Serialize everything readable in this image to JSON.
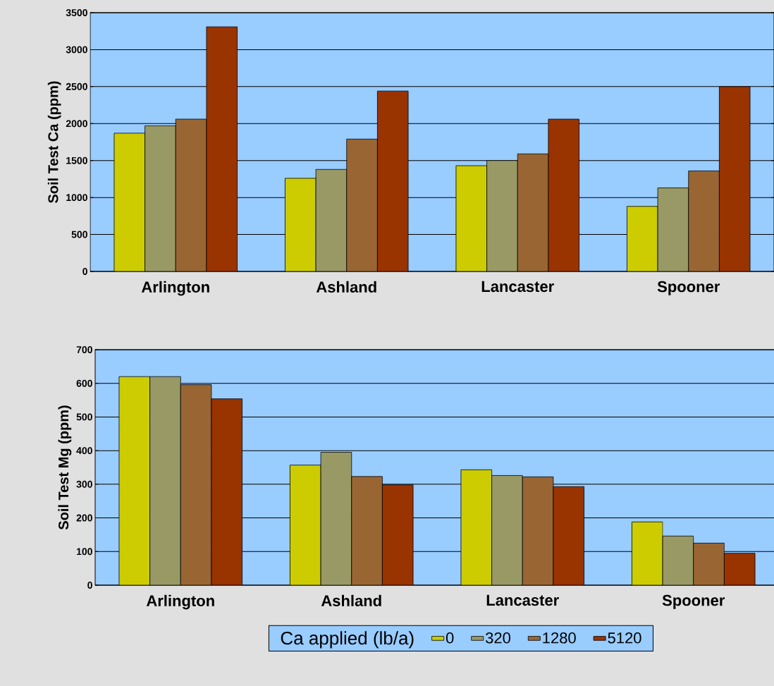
{
  "chart_data": [
    {
      "type": "bar",
      "ylabel": "Soil Test Ca (ppm)",
      "categories": [
        "Arlington",
        "Ashland",
        "Lancaster",
        "Spooner"
      ],
      "ylim": [
        0,
        3500
      ],
      "yticks": [
        0,
        500,
        1000,
        1500,
        2000,
        2500,
        3000,
        3500
      ],
      "grid": "y",
      "series": [
        {
          "color": "#cccc00",
          "values": [
            1870,
            1260,
            1430,
            880
          ]
        },
        {
          "color": "#999966",
          "values": [
            1970,
            1380,
            1500,
            1130
          ]
        },
        {
          "color": "#996633",
          "values": [
            2060,
            1790,
            1590,
            1360
          ]
        },
        {
          "color": "#993300",
          "values": [
            3310,
            2440,
            2060,
            2500
          ]
        }
      ]
    },
    {
      "type": "bar",
      "ylabel": "Soil Test Mg (ppm)",
      "categories": [
        "Arlington",
        "Ashland",
        "Lancaster",
        "Spooner"
      ],
      "ylim": [
        0,
        700
      ],
      "yticks": [
        0,
        100,
        200,
        300,
        400,
        500,
        600,
        700
      ],
      "grid": "y",
      "legend": "bottom",
      "legend_title": "Ca applied (lb/a)",
      "series": [
        {
          "name": "0",
          "color": "#cccc00",
          "values": [
            620,
            357,
            343,
            188
          ]
        },
        {
          "name": "320",
          "color": "#999966",
          "values": [
            620,
            395,
            326,
            146
          ]
        },
        {
          "name": "1280",
          "color": "#996633",
          "values": [
            596,
            323,
            322,
            125
          ]
        },
        {
          "name": "5120",
          "color": "#993300",
          "values": [
            554,
            298,
            293,
            95
          ]
        }
      ]
    }
  ]
}
